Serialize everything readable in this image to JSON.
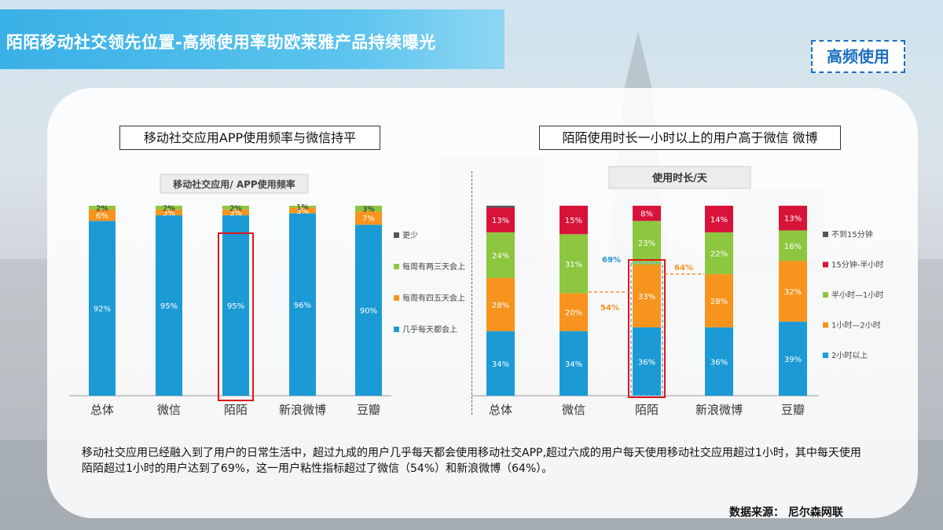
{
  "page": {
    "title": "陌陌移动社交领先位置-高频使用率助欧莱雅产品持续曝光",
    "badge": "高频使用",
    "left_heading": "移动社交应用APP使用频率与微信持平",
    "right_heading": "陌陌使用时长一小时以上的用户高于微信 微博",
    "caption": "移动社交应用已经融入到了用户的日常生活中，超过九成的用户几乎每天都会使用移动社交APP,超过六成的用户每天使用移动社交应用超过1小时，其中每天使用陌陌超过1小时的用户达到了69%，这一用户粘性指标超过了微信（54%）和新浪微博（64%）。",
    "source": "数据来源：  尼尔森网联"
  },
  "colors": {
    "blue": "#1c9ad6",
    "orange": "#f7941d",
    "green": "#8dc63f",
    "red": "#d8133a",
    "dark": "#555555",
    "highlight": "#e0161b"
  },
  "chart_data": [
    {
      "type": "bar",
      "stacked": true,
      "title": "移动社交应用/ APP使用频率",
      "categories": [
        "总体",
        "微信",
        "陌陌",
        "新浪微博",
        "豆瓣"
      ],
      "series": [
        {
          "name": "几乎每天都会上",
          "color": "#1c9ad6",
          "values": [
            92,
            95,
            95,
            96,
            90
          ],
          "labels": [
            "92%",
            "95%",
            "95%",
            "96%",
            "90%"
          ]
        },
        {
          "name": "每周有四五天会上",
          "color": "#f7941d",
          "values": [
            6,
            3,
            3,
            3,
            7
          ],
          "labels": [
            "6%",
            "3%",
            "3%",
            "3%",
            "7%"
          ]
        },
        {
          "name": "每周有两三天会上",
          "color": "#8dc63f",
          "values": [
            2,
            2,
            2,
            1,
            3
          ],
          "labels": [
            "2%",
            "2%",
            "2%",
            "1%",
            "3%"
          ]
        },
        {
          "name": "更少",
          "color": "#555555",
          "values": [
            0,
            0,
            0,
            0,
            0
          ],
          "labels": [
            "",
            "",
            "",
            "",
            ""
          ]
        }
      ],
      "ylim": [
        0,
        100
      ],
      "legend_position": "right",
      "highlight_category": "陌陌"
    },
    {
      "type": "bar",
      "stacked": true,
      "title": "使用时长/天",
      "categories": [
        "总体",
        "微信",
        "陌陌",
        "新浪微博",
        "豆瓣"
      ],
      "series": [
        {
          "name": "2小时以上",
          "color": "#1c9ad6",
          "values": [
            34,
            34,
            36,
            36,
            39
          ],
          "labels": [
            "34%",
            "34%",
            "36%",
            "36%",
            "39%"
          ]
        },
        {
          "name": "1小时—2小时",
          "color": "#f7941d",
          "values": [
            28,
            20,
            33,
            28,
            32
          ],
          "labels": [
            "28%",
            "20%",
            "33%",
            "28%",
            "32%"
          ]
        },
        {
          "name": "半小时—1小时",
          "color": "#8dc63f",
          "values": [
            24,
            31,
            23,
            22,
            16
          ],
          "labels": [
            "24%",
            "31%",
            "23%",
            "22%",
            "16%"
          ]
        },
        {
          "name": "15分钟-半小时",
          "color": "#d8133a",
          "values": [
            13,
            15,
            8,
            14,
            13
          ],
          "labels": [
            "13%",
            "15%",
            "8%",
            "14%",
            "13%"
          ]
        },
        {
          "name": "不到15分钟",
          "color": "#555555",
          "values": [
            1,
            0,
            0,
            0,
            0
          ],
          "labels": [
            "",
            "",
            "",
            "",
            ""
          ]
        }
      ],
      "ylim": [
        0,
        100
      ],
      "legend_position": "right",
      "highlight_category": "陌陌",
      "annotations": [
        {
          "text": "69%",
          "color": "#1c9ad6"
        },
        {
          "text": "54%",
          "color": "#f7941d"
        },
        {
          "text": "64%",
          "color": "#f7941d"
        }
      ]
    }
  ]
}
